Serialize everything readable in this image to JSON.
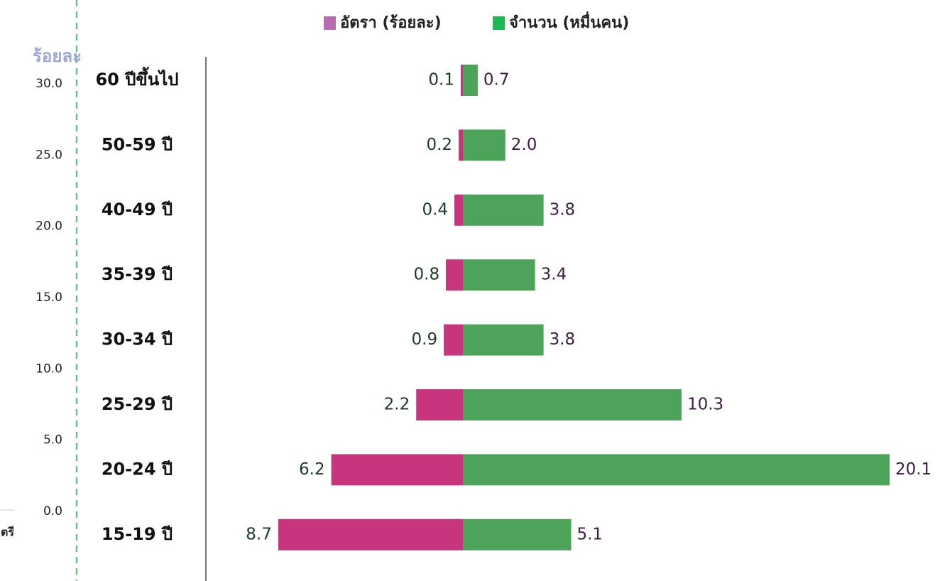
{
  "chart_data": [
    {
      "type": "axis_fragment",
      "ylabel": "ร้อยละ",
      "ylim": [
        0,
        30
      ],
      "yticks": [
        {
          "value": 0,
          "label": "0.0"
        },
        {
          "value": 5,
          "label": "5.0"
        },
        {
          "value": 10,
          "label": "10.0"
        },
        {
          "value": 15,
          "label": "15.0"
        },
        {
          "value": 20,
          "label": "20.0"
        },
        {
          "value": 25,
          "label": "25.0"
        },
        {
          "value": 30,
          "label": "30.0"
        }
      ],
      "categories": [
        "ตรี"
      ]
    },
    {
      "type": "diverging_bar",
      "categories": [
        "60 ปีขึ้นไป",
        "50-59 ปี",
        "40-49 ปี",
        "35-39 ปี",
        "30-34 ปี",
        "25-29 ปี",
        "20-24 ปี",
        "15-19 ปี"
      ],
      "series": [
        {
          "name": "อัตรา (ร้อยละ)",
          "color": "#c8357e",
          "legend_color": "#b86bb0",
          "label_color": "#1d3a28",
          "values": [
            0.1,
            0.2,
            0.4,
            0.8,
            0.9,
            2.2,
            6.2,
            8.7
          ],
          "value_labels": [
            "0.1",
            "0.2",
            "0.4",
            "0.8",
            "0.9",
            "2.2",
            "6.2",
            "8.7"
          ]
        },
        {
          "name": "จำนวน (หมื่นคน)",
          "color": "#4ea35a",
          "legend_color": "#1db954",
          "label_color": "#3a1f3f",
          "values": [
            0.7,
            2,
            3.8,
            3.4,
            3.8,
            10.3,
            20.1,
            5.1
          ],
          "value_labels": [
            "0.7",
            "2.0",
            "3.8",
            "3.4",
            "3.8",
            "10.3",
            "20.1",
            "5.1"
          ]
        }
      ]
    }
  ]
}
